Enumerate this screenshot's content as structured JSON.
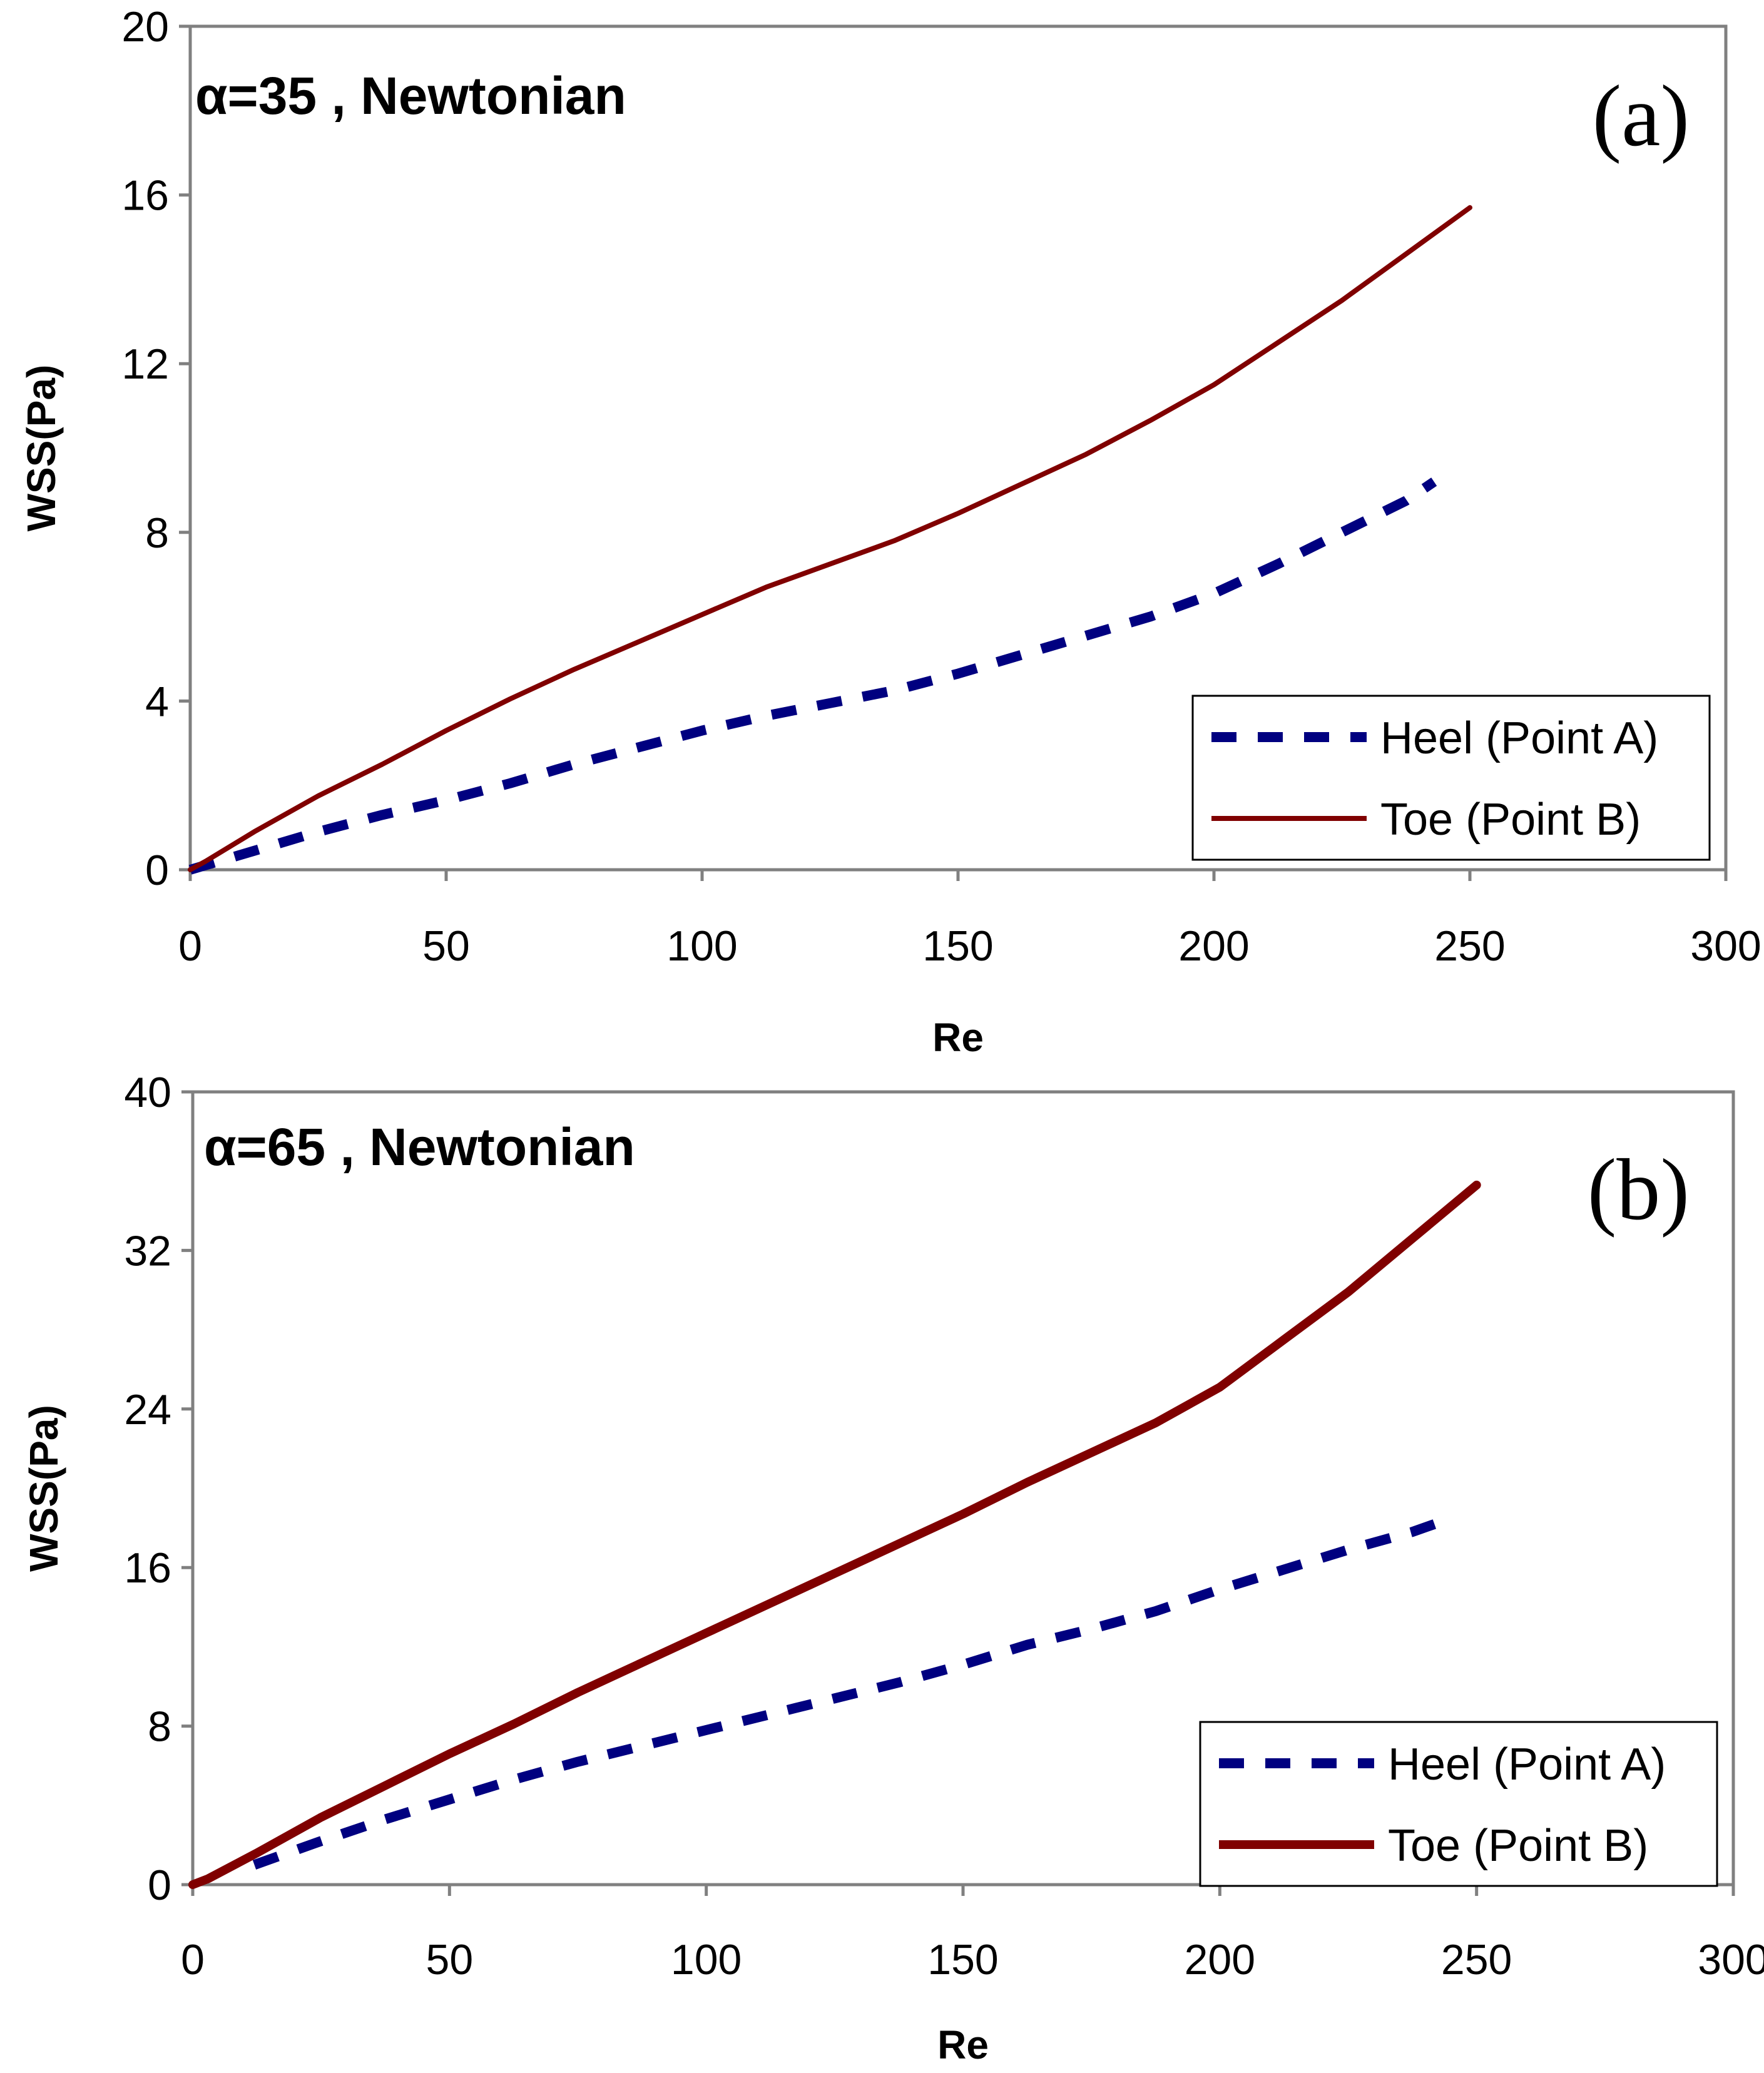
{
  "colors": {
    "heel": "#000080",
    "toe": "#800000",
    "frame": "#808080"
  },
  "chart_data": [
    {
      "type": "line",
      "annotation": "α=35 , Newtonian",
      "panel_label": "(a)",
      "xlabel": "Re",
      "ylabel": "WSS(Pa)",
      "xlim": [
        0,
        300
      ],
      "ylim": [
        0,
        20
      ],
      "xticks": [
        "0",
        "50",
        "100",
        "150",
        "200",
        "250",
        "300"
      ],
      "yticks": [
        "0",
        "4",
        "8",
        "12",
        "16",
        "20"
      ],
      "grid": false,
      "legend_position": "bottom-right",
      "series": [
        {
          "name": "Heel (Point A)",
          "style": "dashed",
          "x": [
            0,
            12.5,
            25,
            37.5,
            50,
            62.5,
            75,
            87.5,
            100,
            112.5,
            125,
            137.5,
            150,
            162.5,
            175,
            187.5,
            200,
            212.5,
            225,
            237.5,
            243
          ],
          "y": [
            0,
            0.45,
            0.9,
            1.3,
            1.65,
            2.05,
            2.5,
            2.9,
            3.3,
            3.65,
            3.95,
            4.25,
            4.65,
            5.1,
            5.55,
            6.0,
            6.55,
            7.25,
            8.0,
            8.75,
            9.2
          ]
        },
        {
          "name": "Toe (Point B)",
          "style": "solid",
          "x": [
            0,
            3,
            12.5,
            25,
            37.5,
            50,
            62.5,
            75,
            87.5,
            100,
            112.5,
            125,
            137.5,
            150,
            162.5,
            175,
            187.5,
            200,
            212.5,
            225,
            237.5,
            250
          ],
          "y": [
            0,
            0.2,
            0.9,
            1.75,
            2.5,
            3.3,
            4.05,
            4.75,
            5.4,
            6.05,
            6.7,
            7.25,
            7.8,
            8.45,
            9.15,
            9.85,
            10.65,
            11.5,
            12.5,
            13.5,
            14.6,
            15.7
          ]
        }
      ]
    },
    {
      "type": "line",
      "annotation": "α=65 , Newtonian",
      "panel_label": "(b)",
      "xlabel": "Re",
      "ylabel": "WSS(Pa)",
      "xlim": [
        0,
        300
      ],
      "ylim": [
        0,
        40
      ],
      "xticks": [
        "0",
        "50",
        "100",
        "150",
        "200",
        "250",
        "300"
      ],
      "yticks": [
        "0",
        "8",
        "16",
        "24",
        "32",
        "40"
      ],
      "grid": false,
      "legend_position": "bottom-right",
      "series": [
        {
          "name": "Heel (Point A)",
          "style": "dashed",
          "x": [
            12,
            25,
            37.5,
            50,
            62.5,
            75,
            87.5,
            100,
            112.5,
            125,
            137.5,
            150,
            162.5,
            175,
            187.5,
            200,
            212.5,
            225,
            237.5,
            243
          ],
          "y": [
            1.0,
            2.2,
            3.3,
            4.3,
            5.3,
            6.2,
            7.0,
            7.8,
            8.6,
            9.4,
            10.2,
            11.1,
            12.1,
            12.9,
            13.8,
            14.9,
            15.9,
            16.9,
            17.8,
            18.3
          ]
        },
        {
          "name": "Toe (Point B)",
          "style": "solid",
          "x": [
            0,
            3,
            12.5,
            25,
            37.5,
            50,
            62.5,
            75,
            87.5,
            100,
            112.5,
            125,
            137.5,
            150,
            162.5,
            175,
            187.5,
            200,
            212.5,
            225,
            237.5,
            250
          ],
          "y": [
            0,
            0.3,
            1.6,
            3.4,
            5.0,
            6.6,
            8.1,
            9.7,
            11.2,
            12.7,
            14.2,
            15.7,
            17.2,
            18.7,
            20.3,
            21.8,
            23.3,
            25.1,
            27.5,
            29.9,
            32.6,
            35.3
          ]
        }
      ]
    }
  ]
}
